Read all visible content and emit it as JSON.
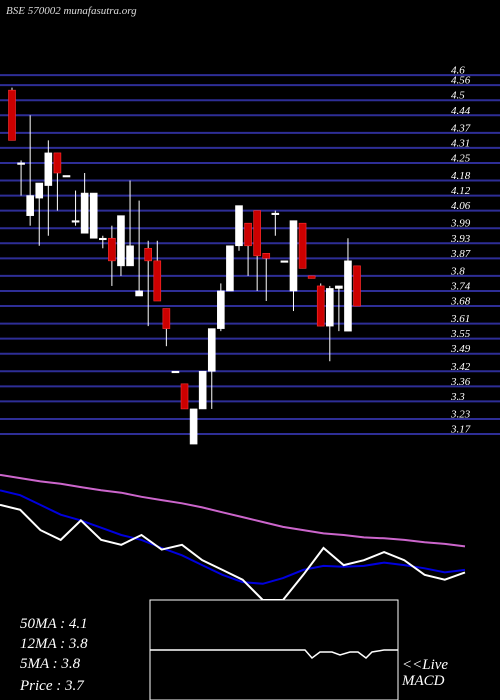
{
  "chart_data": [
    {
      "type": "candlestick",
      "title": "BSE 570002 munafasutra.org",
      "up_color": "#ffffff",
      "down_color": "#cc0000",
      "grid": true,
      "grid_color": "#2e2e96",
      "ylim": [
        3.1,
        4.9
      ],
      "yticks": [
        4.6,
        4.56,
        4.5,
        4.44,
        4.37,
        4.31,
        4.25,
        4.18,
        4.12,
        4.06,
        3.99,
        3.93,
        3.87,
        3.8,
        3.74,
        3.68,
        3.61,
        3.55,
        3.49,
        3.42,
        3.36,
        3.3,
        3.23,
        3.17
      ],
      "open": [
        4.54,
        4.25,
        4.04,
        4.11,
        4.16,
        4.29,
        4.2,
        4.02,
        3.97,
        3.95,
        3.95,
        3.95,
        3.84,
        3.84,
        3.72,
        3.91,
        3.86,
        3.67,
        3.42,
        3.37,
        3.13,
        3.27,
        3.42,
        3.59,
        3.74,
        3.92,
        4.01,
        4.06,
        3.89,
        4.05,
        3.86,
        3.74,
        4.01,
        3.8,
        3.76,
        3.6,
        3.75,
        3.58,
        3.84
      ],
      "high": [
        4.55,
        4.26,
        4.44,
        4.17,
        4.34,
        4.29,
        4.2,
        4.14,
        4.21,
        4.13,
        3.96,
        4.0,
        4.04,
        4.18,
        4.1,
        3.94,
        3.94,
        3.67,
        3.42,
        3.37,
        3.27,
        3.42,
        3.59,
        3.77,
        3.92,
        4.08,
        4.01,
        4.06,
        3.89,
        4.06,
        3.86,
        4.02,
        4.01,
        3.8,
        3.77,
        3.76,
        3.76,
        3.95,
        3.84
      ],
      "low": [
        4.34,
        4.12,
        4.0,
        3.92,
        3.96,
        4.06,
        4.2,
        4.0,
        3.97,
        3.95,
        3.91,
        3.76,
        3.8,
        3.84,
        3.72,
        3.6,
        3.7,
        3.52,
        3.42,
        3.27,
        3.13,
        3.27,
        3.27,
        3.58,
        3.74,
        3.9,
        3.8,
        3.74,
        3.7,
        3.96,
        3.86,
        3.66,
        3.83,
        3.79,
        3.6,
        3.46,
        3.58,
        3.58,
        3.68
      ],
      "close": [
        4.34,
        4.25,
        4.12,
        4.17,
        4.29,
        4.21,
        4.2,
        4.02,
        4.13,
        4.13,
        3.95,
        3.86,
        4.04,
        3.92,
        3.74,
        3.86,
        3.7,
        3.59,
        3.42,
        3.27,
        3.27,
        3.42,
        3.59,
        3.74,
        3.92,
        4.08,
        3.92,
        3.88,
        3.87,
        4.05,
        3.86,
        4.02,
        3.83,
        3.79,
        3.6,
        3.75,
        3.76,
        3.86,
        3.68
      ]
    },
    {
      "type": "line",
      "ylim": [
        3.0,
        4.6
      ],
      "series": [
        {
          "color": "#cc66cc",
          "values": [
            4.54,
            4.5,
            4.46,
            4.43,
            4.39,
            4.35,
            4.32,
            4.27,
            4.23,
            4.19,
            4.14,
            4.08,
            4.02,
            3.96,
            3.9,
            3.86,
            3.82,
            3.8,
            3.77,
            3.76,
            3.74,
            3.71,
            3.69,
            3.66
          ]
        },
        {
          "color": "#0000dd",
          "values": [
            4.35,
            4.29,
            4.17,
            4.05,
            3.98,
            3.89,
            3.8,
            3.74,
            3.64,
            3.55,
            3.43,
            3.31,
            3.22,
            3.2,
            3.27,
            3.37,
            3.42,
            3.41,
            3.42,
            3.46,
            3.43,
            3.39,
            3.34,
            3.37
          ]
        },
        {
          "color": "#ffffff",
          "values": [
            4.17,
            4.11,
            3.86,
            3.74,
            3.98,
            3.74,
            3.68,
            3.8,
            3.62,
            3.68,
            3.49,
            3.37,
            3.25,
            3.0,
            3.0,
            3.31,
            3.64,
            3.43,
            3.49,
            3.59,
            3.49,
            3.31,
            3.25,
            3.34
          ]
        }
      ]
    }
  ],
  "info": [
    "50MA : 4.1",
    "12MA : 3.8",
    "5MA : 3.8",
    "Price   : 3.7"
  ],
  "macd_label": [
    "<<Live",
    "MACD"
  ]
}
